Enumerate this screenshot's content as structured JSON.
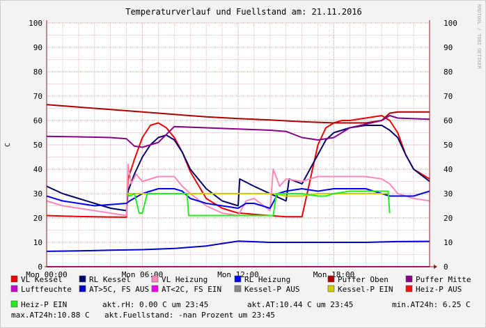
{
  "chart_data": {
    "type": "line",
    "title": "Temperaturverlauf und Fuellstand am: 21.11.2016",
    "ylabel": "C",
    "watermark": "RRDTOOL / TOBI OETIKER",
    "ylim": [
      0,
      100
    ],
    "xlim": [
      0,
      24
    ],
    "yticks": [
      "0",
      "10",
      "20",
      "30",
      "40",
      "50",
      "60",
      "70",
      "80",
      "90",
      "100"
    ],
    "xticks": [
      {
        "x": 0,
        "label": "Mon 00:00"
      },
      {
        "x": 6,
        "label": "Mon 06:00"
      },
      {
        "x": 12,
        "label": "Mon 12:00"
      },
      {
        "x": 18,
        "label": "Mon 18:00"
      }
    ],
    "grid": true,
    "legend_placement": "bottom",
    "series": [
      {
        "name": "VL Kessel",
        "color": "#ee0000",
        "x": [
          0,
          1,
          2,
          3,
          4,
          5,
          5.1,
          5.5,
          6,
          6.5,
          7,
          7.5,
          8,
          8.5,
          9,
          10,
          11,
          12,
          12.1,
          13,
          14,
          15,
          16,
          17,
          17.5,
          18,
          18.5,
          19,
          20,
          21,
          21.5,
          22,
          22.5,
          23,
          24
        ],
        "y": [
          21,
          20.8,
          20.6,
          20.5,
          20.4,
          20.3,
          36,
          44,
          53,
          58,
          59,
          57,
          53,
          47,
          39,
          28,
          24,
          22,
          22,
          21.5,
          21,
          20.5,
          20.5,
          50,
          57,
          59,
          60,
          60,
          61,
          62,
          60,
          55,
          46,
          40,
          36
        ]
      },
      {
        "name": "RL Kessel",
        "color": "#000066",
        "x": [
          0,
          1,
          2,
          3,
          4,
          5,
          5.1,
          5.5,
          6,
          6.5,
          7,
          7.5,
          8,
          8.5,
          9,
          10,
          11,
          12,
          12.1,
          13,
          14,
          15,
          15.2,
          16,
          17,
          17.5,
          18,
          18.5,
          19,
          20,
          21,
          21.5,
          22,
          22.5,
          23,
          24
        ],
        "y": [
          33,
          30,
          28,
          26,
          24,
          23,
          31,
          38,
          45,
          50,
          53,
          54,
          52,
          47,
          40,
          32,
          27,
          25,
          36,
          33,
          30,
          27,
          36,
          34,
          46,
          52,
          55,
          56,
          57,
          58,
          58,
          56,
          53,
          46,
          40,
          35
        ]
      },
      {
        "name": "VL Heizung",
        "color": "#ff88bb",
        "x": [
          0,
          1,
          2,
          3,
          4,
          5,
          5.1,
          5.3,
          5.6,
          6,
          7,
          8,
          8.5,
          9,
          10,
          11,
          12,
          12.5,
          13,
          14,
          14.2,
          14.6,
          15,
          16,
          17,
          18,
          19,
          20,
          21,
          21.5,
          22,
          23,
          24
        ],
        "y": [
          27,
          25,
          24,
          23,
          22,
          21,
          42,
          34,
          38,
          35,
          37,
          37,
          33,
          30,
          25,
          22,
          21,
          27,
          28,
          23,
          40,
          33,
          36,
          35,
          37,
          37,
          37,
          37,
          36,
          34,
          30,
          28,
          27
        ]
      },
      {
        "name": "RL Heizung",
        "color": "#0000ee",
        "x": [
          0,
          1,
          2,
          3,
          4,
          5,
          5.2,
          6,
          7,
          8,
          8.5,
          9,
          10,
          11,
          12,
          12.5,
          13,
          14,
          14.5,
          15,
          16,
          17,
          18,
          19,
          20,
          21,
          21.5,
          22,
          23,
          24
        ],
        "y": [
          29,
          27,
          26,
          25,
          25.5,
          26,
          27,
          30,
          32,
          32,
          31,
          28,
          26,
          25,
          24,
          26,
          26,
          24,
          30,
          31,
          32,
          31,
          32,
          32,
          32,
          30,
          29,
          29,
          29,
          31
        ]
      },
      {
        "name": "Puffer Oben",
        "color": "#aa0000",
        "x": [
          0,
          2,
          4,
          6,
          8,
          10,
          12,
          14,
          16,
          18,
          20,
          21,
          21.5,
          22,
          24
        ],
        "y": [
          66.5,
          65.5,
          64.5,
          63.5,
          62.5,
          61.5,
          60.8,
          60.2,
          59.5,
          59,
          59,
          60,
          63,
          63.5,
          63.5
        ]
      },
      {
        "name": "Puffer Mitte",
        "color": "#880088",
        "x": [
          0,
          2,
          4,
          5,
          5.5,
          6,
          7,
          8,
          10,
          12,
          14,
          15,
          16,
          17,
          18,
          19,
          20,
          21,
          21.5,
          22,
          24
        ],
        "y": [
          53.5,
          53.3,
          53,
          52.5,
          49.5,
          49,
          51,
          57.5,
          57,
          56.5,
          56,
          55.5,
          53,
          52,
          53,
          57,
          58.5,
          60,
          62,
          61,
          60.5
        ]
      },
      {
        "name": "Luftfeuchte",
        "color": "#cc00cc",
        "x": [
          0,
          24
        ],
        "y": [
          0,
          0
        ]
      },
      {
        "name": "AT>5C, FS AUS",
        "color": "#0000cc",
        "x": [
          0,
          2,
          4,
          6,
          8,
          10,
          11,
          12,
          14,
          16,
          18,
          20,
          22,
          24
        ],
        "y": [
          6.3,
          6.5,
          6.8,
          7,
          7.5,
          8.5,
          9.5,
          10.5,
          10,
          10,
          10,
          10,
          10.3,
          10.4
        ]
      },
      {
        "name": "AT<2C, FS EIN",
        "color": "#ee00ee",
        "x": [],
        "y": []
      },
      {
        "name": "Kessel-P AUS",
        "color": "#888888",
        "x": [],
        "y": []
      },
      {
        "name": "Kessel-P EIN",
        "color": "#cccc00",
        "x": [
          5,
          5.5,
          6,
          7,
          8,
          8.5,
          14.2,
          15,
          16,
          17,
          18,
          20,
          21,
          21.4
        ],
        "y": [
          30,
          30,
          30,
          30,
          30,
          30,
          30,
          29,
          29,
          30,
          30,
          30,
          30,
          30
        ]
      },
      {
        "name": "Heiz-P AUS",
        "color": "#ee1111",
        "x": [],
        "y": []
      },
      {
        "name": "Heiz-P EIN",
        "color": "#22ee22",
        "x": [
          5,
          5.2,
          5.5,
          5.8,
          6,
          6.3,
          7,
          8,
          8.8,
          8.9,
          14.2,
          14.4,
          15,
          16,
          17,
          17.5,
          18,
          19,
          20,
          21,
          21.4,
          21.5
        ],
        "y": [
          30,
          29,
          30,
          22,
          22,
          30,
          30,
          30,
          30,
          21,
          21,
          30,
          30,
          30,
          29,
          29,
          30,
          31,
          31,
          31,
          31,
          22
        ]
      }
    ]
  },
  "legend_rows": [
    [
      {
        "label": "VL Kessel",
        "color": "#ee0000"
      },
      {
        "label": "RL Kessel",
        "color": "#000066"
      },
      {
        "label": "VL Heizung",
        "color": "#ff88bb"
      },
      {
        "label": "RL Heizung",
        "color": "#0000ee"
      },
      {
        "label": "Puffer Oben",
        "color": "#aa0000"
      },
      {
        "label": "Puffer Mitte",
        "color": "#880088"
      }
    ],
    [
      {
        "label": "Luftfeuchte",
        "color": "#cc00cc"
      },
      {
        "label": "AT>5C, FS AUS",
        "color": "#0000cc"
      },
      {
        "label": "AT<2C, FS EIN",
        "color": "#ee00ee"
      },
      {
        "label": "Kessel-P AUS",
        "color": "#888888"
      },
      {
        "label": "Kessel-P EIN",
        "color": "#cccc00"
      },
      {
        "label": "Heiz-P AUS",
        "color": "#ee1111"
      }
    ]
  ],
  "legend_last": {
    "label": "Heiz-P EIN",
    "color": "#22ee22"
  },
  "stats": {
    "rh": "akt.rH: 0.00 C um 23:45",
    "at": "akt.AT:10.44 C um 23:45",
    "min": "min.AT24h: 6.25 C",
    "max": "max.AT24h:10.88 C",
    "fuell": "akt.Fuellstand: -nan Prozent um 23:45"
  }
}
